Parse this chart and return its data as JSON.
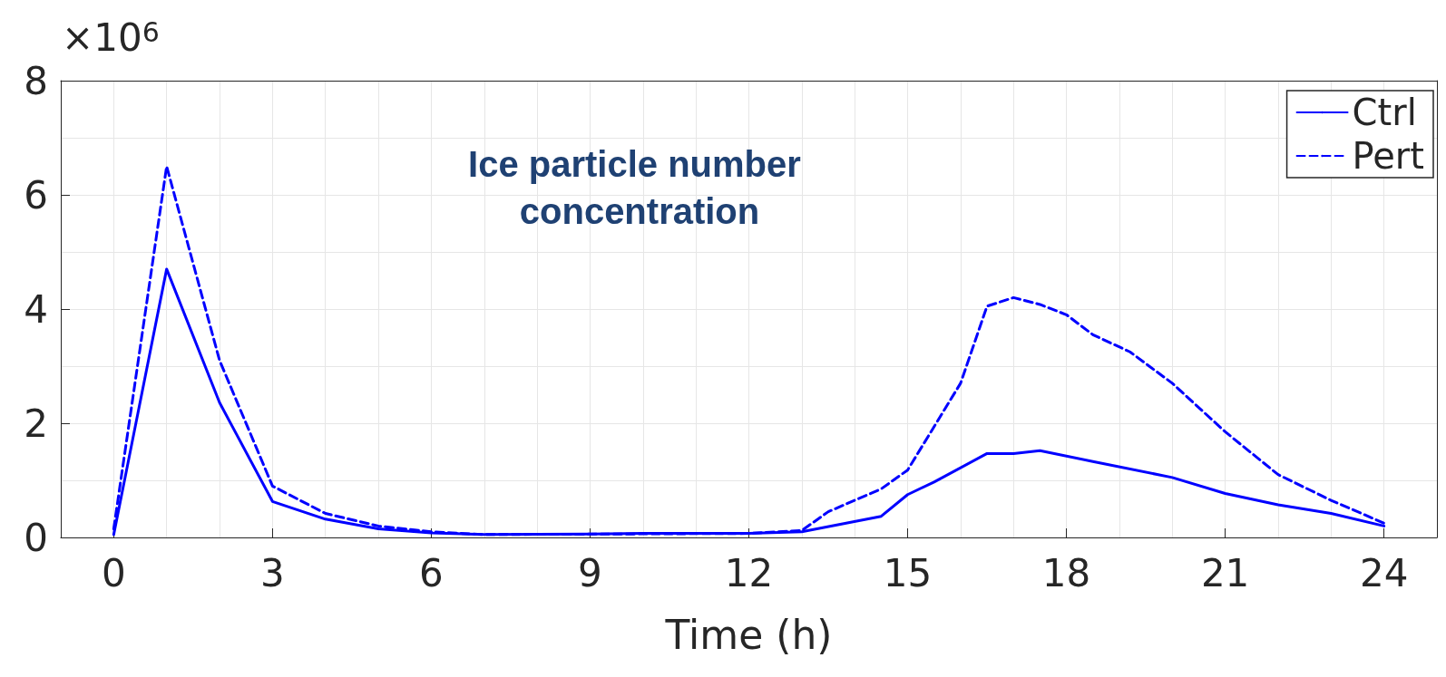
{
  "chart_data": {
    "type": "line",
    "title": "Ice particle number concentration",
    "xlabel": "Time (h)",
    "annotations": [
      "×10$^{6}$"
    ],
    "xlim": [
      -1,
      25
    ],
    "xticks": [
      0,
      3,
      6,
      9,
      12,
      15,
      18,
      21,
      24
    ],
    "ylim": [
      0,
      8
    ],
    "yticks": [
      0,
      2,
      4,
      6,
      8
    ],
    "grid": true,
    "legend": "top right",
    "marker": "none",
    "series": [
      {
        "name": "Ctrl",
        "color": "#0000ff",
        "line_style": "solid",
        "x": [
          0,
          1,
          2,
          3,
          4,
          5,
          6,
          7,
          9,
          10,
          12,
          13,
          14.5,
          15,
          15.5,
          16.5,
          17,
          17.5,
          18.5,
          20,
          21,
          22,
          23,
          24
        ],
        "values": [
          0.05,
          4.7,
          2.36,
          0.63,
          0.32,
          0.15,
          0.08,
          0.05,
          0.06,
          0.07,
          0.07,
          0.1,
          0.37,
          0.75,
          0.97,
          1.47,
          1.47,
          1.52,
          1.33,
          1.05,
          0.77,
          0.57,
          0.42,
          0.2
        ]
      },
      {
        "name": "Pert",
        "color": "#0000ff",
        "line_style": "dashed",
        "x": [
          0,
          1,
          2,
          3,
          4,
          5,
          6,
          7,
          12,
          13,
          13.5,
          14.5,
          15,
          16,
          16.5,
          17,
          17.5,
          18,
          18.5,
          19.2,
          20,
          21,
          22,
          23,
          24
        ],
        "values": [
          0.15,
          6.5,
          3.1,
          0.9,
          0.42,
          0.2,
          0.1,
          0.05,
          0.07,
          0.12,
          0.45,
          0.85,
          1.18,
          2.7,
          4.05,
          4.2,
          4.08,
          3.9,
          3.55,
          3.25,
          2.7,
          1.85,
          1.1,
          0.65,
          0.25
        ]
      }
    ]
  }
}
